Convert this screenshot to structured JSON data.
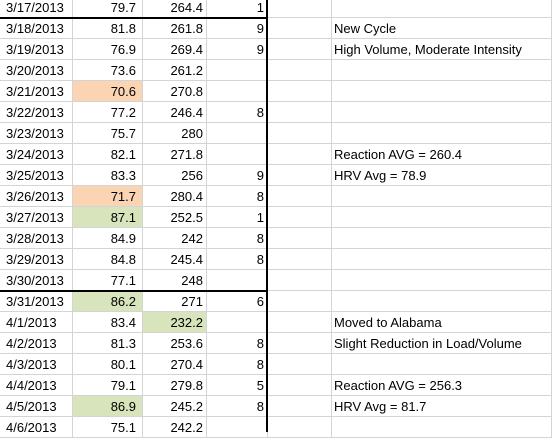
{
  "colors": {
    "orange_fill": "#fbd4b4",
    "green_fill": "#d8e4bc",
    "grid": "#d4d4d4",
    "border": "#000000"
  },
  "rows": [
    {
      "date": "3/17/2013",
      "b": "79.7",
      "c": "264.4",
      "d": "1",
      "note": ""
    },
    {
      "date": "3/18/2013",
      "b": "81.8",
      "c": "261.8",
      "d": "9",
      "note": "New Cycle"
    },
    {
      "date": "3/19/2013",
      "b": "76.9",
      "c": "269.4",
      "d": "9",
      "note": "High Volume, Moderate Intensity"
    },
    {
      "date": "3/20/2013",
      "b": "73.6",
      "c": "261.2",
      "d": "",
      "note": ""
    },
    {
      "date": "3/21/2013",
      "b": "70.6",
      "c": "270.8",
      "d": "",
      "note": "",
      "hl_b": "orange"
    },
    {
      "date": "3/22/2013",
      "b": "77.2",
      "c": "246.4",
      "d": "8",
      "note": ""
    },
    {
      "date": "3/23/2013",
      "b": "75.7",
      "c": "280",
      "d": "",
      "note": ""
    },
    {
      "date": "3/24/2013",
      "b": "82.1",
      "c": "271.8",
      "d": "",
      "note": "Reaction AVG = 260.4"
    },
    {
      "date": "3/25/2013",
      "b": "83.3",
      "c": "256",
      "d": "9",
      "note": "HRV Avg = 78.9"
    },
    {
      "date": "3/26/2013",
      "b": "71.7",
      "c": "280.4",
      "d": "8",
      "note": "",
      "hl_b": "orange"
    },
    {
      "date": "3/27/2013",
      "b": "87.1",
      "c": "252.5",
      "d": "1",
      "note": "",
      "hl_b": "green"
    },
    {
      "date": "3/28/2013",
      "b": "84.9",
      "c": "242",
      "d": "8",
      "note": ""
    },
    {
      "date": "3/29/2013",
      "b": "84.8",
      "c": "245.4",
      "d": "8",
      "note": ""
    },
    {
      "date": "3/30/2013",
      "b": "77.1",
      "c": "248",
      "d": "",
      "note": ""
    },
    {
      "date": "3/31/2013",
      "b": "86.2",
      "c": "271",
      "d": "6",
      "note": "",
      "hl_b": "green"
    },
    {
      "date": "4/1/2013",
      "b": "83.4",
      "c": "232.2",
      "d": "",
      "note": "Moved to Alabama",
      "hl_c": "green"
    },
    {
      "date": "4/2/2013",
      "b": "81.3",
      "c": "253.6",
      "d": "8",
      "note": "Slight Reduction in Load/Volume"
    },
    {
      "date": "4/3/2013",
      "b": "80.1",
      "c": "270.4",
      "d": "8",
      "note": ""
    },
    {
      "date": "4/4/2013",
      "b": "79.1",
      "c": "279.8",
      "d": "5",
      "note": "Reaction AVG = 256.3"
    },
    {
      "date": "4/5/2013",
      "b": "86.9",
      "c": "245.2",
      "d": "8",
      "note": "HRV Avg = 81.7",
      "hl_b": "green"
    },
    {
      "date": "4/6/2013",
      "b": "75.1",
      "c": "242.2",
      "d": "",
      "note": ""
    }
  ]
}
